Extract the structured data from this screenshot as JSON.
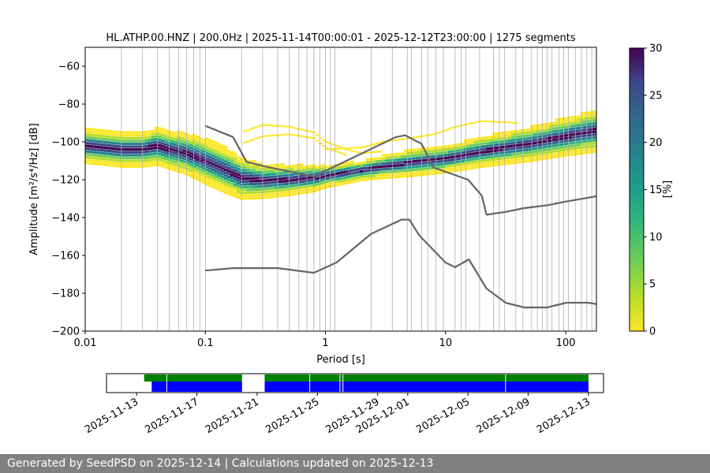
{
  "chart_data": [
    {
      "type": "heatmap",
      "title": "HL.ATHP.00.HNZ | 200.0Hz | 2025-11-14T00:00:01 - 2025-12-12T23:00:00 | 1275 segments",
      "xlabel": "Period [s]",
      "ylabel": "Amplitude [m²/s⁴/Hz] [dB]",
      "xscale": "log",
      "xlim": [
        0.01,
        180
      ],
      "ylim": [
        -200,
        -50
      ],
      "x_ticks": [
        {
          "value": 0.01,
          "label": "0.01"
        },
        {
          "value": 0.1,
          "label": "0.1"
        },
        {
          "value": 1,
          "label": "1"
        },
        {
          "value": 10,
          "label": "10"
        },
        {
          "value": 100,
          "label": "100"
        }
      ],
      "y_ticks": [
        {
          "value": -60,
          "label": "−60"
        },
        {
          "value": -80,
          "label": "−80"
        },
        {
          "value": -100,
          "label": "−100"
        },
        {
          "value": -120,
          "label": "−120"
        },
        {
          "value": -140,
          "label": "−140"
        },
        {
          "value": -160,
          "label": "−160"
        },
        {
          "value": -180,
          "label": "−180"
        },
        {
          "value": -200,
          "label": "−200"
        }
      ],
      "grid": "vertical",
      "grid_periods": [
        0.02,
        0.03,
        0.04,
        0.05,
        0.06,
        0.07,
        0.08,
        0.09,
        0.1,
        0.2,
        0.3,
        0.4,
        0.5,
        0.6,
        0.7,
        0.8,
        0.9,
        1,
        1.1,
        1.2,
        2.4,
        4.8,
        9.6,
        19.2,
        38.4,
        76.8,
        3.6,
        5.2,
        6.3,
        7.1,
        8.3,
        12,
        13.5,
        14.7,
        25,
        28,
        31,
        44,
        52,
        58,
        64,
        70,
        88,
        96,
        105,
        120,
        135,
        150,
        165
      ],
      "colorbar": {
        "label": "[%]",
        "min": 0,
        "max": 30,
        "ticks": [
          0,
          5,
          10,
          15,
          20,
          25,
          30
        ],
        "colormap": "viridis_r"
      },
      "psd_ridge": {
        "period": [
          0.01,
          0.02,
          0.03,
          0.04,
          0.05,
          0.07,
          0.1,
          0.15,
          0.2,
          0.3,
          0.5,
          0.8,
          1,
          2,
          3,
          5,
          10,
          20,
          50,
          100,
          180
        ],
        "amplitude_db": [
          -102,
          -104,
          -104,
          -102,
          -104,
          -106,
          -110,
          -115,
          -119,
          -120.5,
          -120,
          -119,
          -118,
          -115,
          -113,
          -111,
          -109,
          -105,
          -101,
          -97,
          -94
        ],
        "spread_db": [
          9,
          9,
          9,
          10,
          10,
          11,
          12,
          12,
          11,
          9,
          8,
          7,
          6,
          5,
          6,
          7,
          7,
          8,
          9,
          10,
          11
        ]
      },
      "scatter_bands": [
        {
          "period": [
            0.2,
            0.3,
            0.5,
            0.8,
            1,
            1.5,
            2,
            3
          ],
          "amplitude_db": [
            -95,
            -91,
            -92,
            -95,
            -100,
            -104,
            -106,
            -105
          ]
        },
        {
          "period": [
            0.2,
            0.3,
            0.5,
            0.8,
            1,
            1.5
          ],
          "amplitude_db": [
            -101,
            -97,
            -96,
            -98,
            -103,
            -107
          ]
        },
        {
          "period": [
            1,
            2,
            3,
            5,
            8,
            12,
            20,
            40
          ],
          "amplitude_db": [
            -104,
            -103,
            -100,
            -98,
            -96,
            -92,
            -89,
            -90
          ]
        }
      ],
      "noise_models": [
        {
          "name": "",
          "period": [
            0.1,
            0.17,
            0.22,
            0.32,
            0.8,
            3.8,
            4.6,
            6.3,
            7.9,
            15.4,
            20,
            21.9,
            31.6,
            45,
            70,
            101,
            154,
            180
          ],
          "amplitude_db": [
            -91.5,
            -97.4,
            -110.5,
            -113.1,
            -118.3,
            -97.6,
            -96.5,
            -101,
            -113.5,
            -120,
            -128.4,
            -138.5,
            -137,
            -135,
            -133.5,
            -131.5,
            -129.5,
            -128.7
          ]
        },
        {
          "name": "",
          "period": [
            0.1,
            0.17,
            0.4,
            0.8,
            1.24,
            2.4,
            4.3,
            5.0,
            6.0,
            10,
            12,
            15.6,
            21.9,
            31.6,
            45,
            70,
            101,
            154,
            180
          ],
          "amplitude_db": [
            -168,
            -166.7,
            -166.7,
            -169.2,
            -163.7,
            -148.6,
            -141.1,
            -141.1,
            -149.2,
            -163.8,
            -166.2,
            -162.1,
            -177.5,
            -185,
            -187.5,
            -187.5,
            -185,
            -185,
            -185.7
          ]
        }
      ]
    },
    {
      "type": "timeline",
      "dates": [
        "2025-11-13",
        "2025-11-17",
        "2025-11-21",
        "2025-11-25",
        "2025-11-29",
        "2025-12-01",
        "2025-12-05",
        "2025-12-09",
        "2025-12-13"
      ],
      "xlim": [
        "2025-11-11",
        "2025-12-14"
      ],
      "availability": [
        {
          "start": "2025-11-13.5",
          "end": "2025-11-20"
        },
        {
          "start": "2025-11-21.5",
          "end": "2025-12-13"
        }
      ],
      "segments": [
        {
          "start": "2025-11-14",
          "end": "2025-11-20"
        },
        {
          "start": "2025-11-21.5",
          "end": "2025-12-13"
        }
      ],
      "gaps": [
        "2025-11-15",
        "2025-11-24.5",
        "2025-11-26.5",
        "2025-11-26.7",
        "2025-12-07.5"
      ]
    }
  ],
  "footer": {
    "text": "Generated by SeedPSD on 2025-12-14 | Calculations updated on 2025-12-13"
  }
}
